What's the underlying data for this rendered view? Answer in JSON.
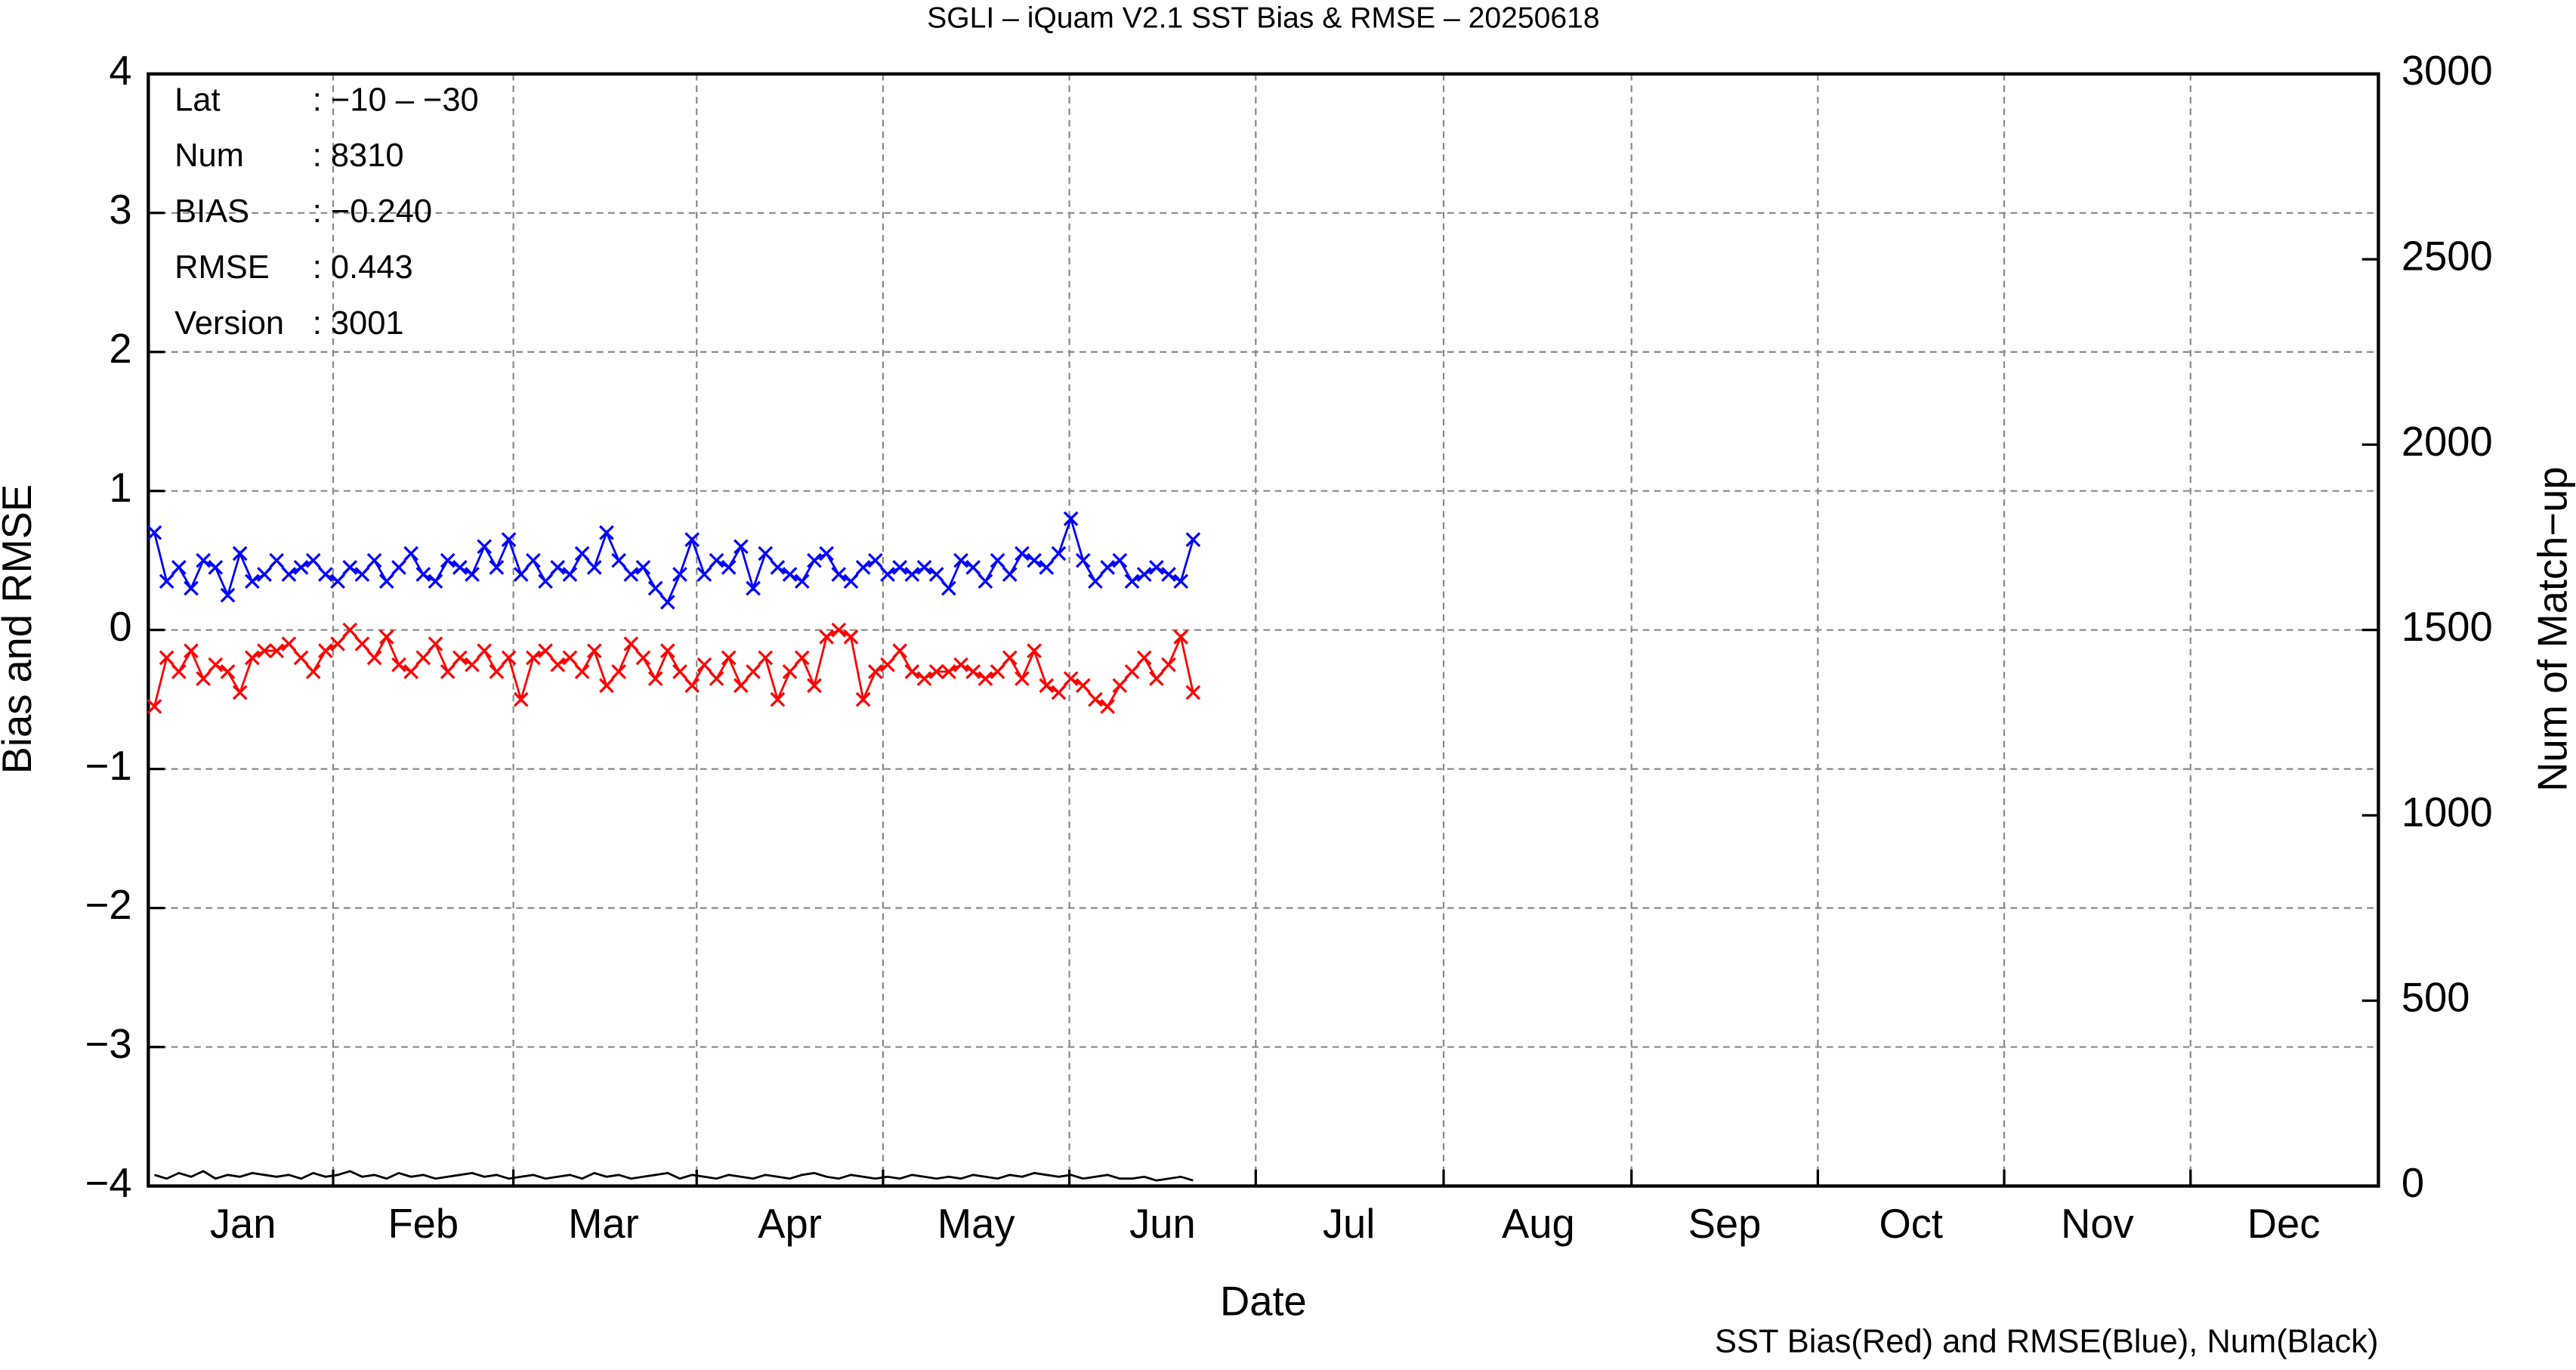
{
  "chart_data": {
    "type": "line",
    "title": "SGLI – iQuam V2.1 SST Bias & RMSE  – 20250618",
    "xlabel": "Date",
    "ylabel": "Bias and RMSE",
    "y2label": "Num of Match−up",
    "footer": "SST Bias(Red) and RMSE(Blue), Num(Black)",
    "info": [
      {
        "label": "Lat",
        "value": ": −10 – −30"
      },
      {
        "label": "Num",
        "value": ": 8310"
      },
      {
        "label": "BIAS",
        "value": ": −0.240"
      },
      {
        "label": "RMSE",
        "value": ": 0.443"
      },
      {
        "label": "Version",
        "value": ": 3001"
      }
    ],
    "xlim": [
      0,
      365
    ],
    "xticks": [
      {
        "value": 15.5,
        "label": "Jan"
      },
      {
        "value": 45,
        "label": "Feb"
      },
      {
        "value": 74.5,
        "label": "Mar"
      },
      {
        "value": 105,
        "label": "Apr"
      },
      {
        "value": 135.5,
        "label": "May"
      },
      {
        "value": 166,
        "label": "Jun"
      },
      {
        "value": 196.5,
        "label": "Jul"
      },
      {
        "value": 227.5,
        "label": "Aug"
      },
      {
        "value": 258,
        "label": "Sep"
      },
      {
        "value": 288.5,
        "label": "Oct"
      },
      {
        "value": 319,
        "label": "Nov"
      },
      {
        "value": 349.5,
        "label": "Dec"
      }
    ],
    "ylim": [
      -4,
      4
    ],
    "yticks": [
      {
        "value": -4,
        "label": "−4"
      },
      {
        "value": -3,
        "label": "−3"
      },
      {
        "value": -2,
        "label": "−2"
      },
      {
        "value": -1,
        "label": "−1"
      },
      0,
      1,
      2,
      3,
      4
    ],
    "y2lim": [
      0,
      3000
    ],
    "y2ticks": [
      0,
      500,
      1000,
      1500,
      2000,
      2500,
      3000
    ],
    "grid": true,
    "x": [
      1,
      3,
      5,
      7,
      9,
      11,
      13,
      15,
      17,
      19,
      21,
      23,
      25,
      27,
      29,
      31,
      33,
      35,
      37,
      39,
      41,
      43,
      45,
      47,
      49,
      51,
      53,
      55,
      57,
      59,
      61,
      63,
      65,
      67,
      69,
      71,
      73,
      75,
      77,
      79,
      81,
      83,
      85,
      87,
      89,
      91,
      93,
      95,
      97,
      99,
      101,
      103,
      105,
      107,
      109,
      111,
      113,
      115,
      117,
      119,
      121,
      123,
      125,
      127,
      129,
      131,
      133,
      135,
      137,
      139,
      141,
      143,
      145,
      147,
      149,
      151,
      153,
      155,
      157,
      159,
      161,
      163,
      165,
      167,
      169,
      171
    ],
    "series": [
      {
        "name": "RMSE",
        "color": "#0000ff",
        "values": [
          0.7,
          0.35,
          0.45,
          0.3,
          0.5,
          0.45,
          0.25,
          0.55,
          0.35,
          0.4,
          0.5,
          0.4,
          0.45,
          0.5,
          0.4,
          0.35,
          0.45,
          0.4,
          0.5,
          0.35,
          0.45,
          0.55,
          0.4,
          0.35,
          0.5,
          0.45,
          0.4,
          0.6,
          0.45,
          0.65,
          0.4,
          0.5,
          0.35,
          0.45,
          0.4,
          0.55,
          0.45,
          0.7,
          0.5,
          0.4,
          0.45,
          0.3,
          0.2,
          0.4,
          0.65,
          0.4,
          0.5,
          0.45,
          0.6,
          0.3,
          0.55,
          0.45,
          0.4,
          0.35,
          0.5,
          0.55,
          0.4,
          0.35,
          0.45,
          0.5,
          0.4,
          0.45,
          0.4,
          0.45,
          0.4,
          0.3,
          0.5,
          0.45,
          0.35,
          0.5,
          0.4,
          0.55,
          0.5,
          0.45,
          0.55,
          0.8,
          0.5,
          0.35,
          0.45,
          0.5,
          0.35,
          0.4,
          0.45,
          0.4,
          0.35,
          0.65
        ]
      },
      {
        "name": "Bias",
        "color": "#ff0000",
        "values": [
          -0.55,
          -0.2,
          -0.3,
          -0.15,
          -0.35,
          -0.25,
          -0.3,
          -0.45,
          -0.2,
          -0.15,
          -0.15,
          -0.1,
          -0.2,
          -0.3,
          -0.15,
          -0.1,
          0.0,
          -0.1,
          -0.2,
          -0.05,
          -0.25,
          -0.3,
          -0.2,
          -0.1,
          -0.3,
          -0.2,
          -0.25,
          -0.15,
          -0.3,
          -0.2,
          -0.5,
          -0.2,
          -0.15,
          -0.25,
          -0.2,
          -0.3,
          -0.15,
          -0.4,
          -0.3,
          -0.1,
          -0.2,
          -0.35,
          -0.15,
          -0.3,
          -0.4,
          -0.25,
          -0.35,
          -0.2,
          -0.4,
          -0.3,
          -0.2,
          -0.5,
          -0.3,
          -0.2,
          -0.4,
          -0.05,
          0.0,
          -0.05,
          -0.5,
          -0.3,
          -0.25,
          -0.15,
          -0.3,
          -0.35,
          -0.3,
          -0.3,
          -0.25,
          -0.3,
          -0.35,
          -0.3,
          -0.2,
          -0.35,
          -0.15,
          -0.4,
          -0.45,
          -0.35,
          -0.4,
          -0.5,
          -0.55,
          -0.4,
          -0.3,
          -0.2,
          -0.35,
          -0.25,
          -0.05,
          -0.45
        ]
      },
      {
        "name": "Num",
        "color": "#000000",
        "axis": "y2",
        "values": [
          30,
          20,
          35,
          25,
          40,
          20,
          30,
          25,
          35,
          30,
          25,
          30,
          20,
          35,
          25,
          30,
          40,
          25,
          30,
          20,
          35,
          25,
          30,
          20,
          25,
          30,
          35,
          25,
          30,
          20,
          25,
          30,
          20,
          25,
          30,
          20,
          35,
          25,
          30,
          20,
          25,
          30,
          35,
          20,
          30,
          25,
          20,
          30,
          25,
          20,
          30,
          25,
          20,
          30,
          35,
          25,
          20,
          30,
          25,
          20,
          25,
          20,
          30,
          25,
          20,
          25,
          20,
          30,
          25,
          20,
          30,
          25,
          35,
          30,
          25,
          30,
          20,
          25,
          30,
          20,
          20,
          25,
          15,
          20,
          25,
          15
        ]
      }
    ]
  }
}
